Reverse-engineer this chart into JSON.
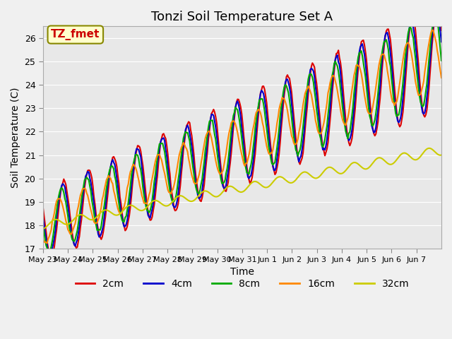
{
  "title": "Tonzi Soil Temperature Set A",
  "xlabel": "Time",
  "ylabel": "Soil Temperature (C)",
  "annotation": "TZ_fmet",
  "annotation_color": "#cc0000",
  "annotation_bg": "#ffffcc",
  "annotation_border": "#888800",
  "ylim": [
    17.0,
    26.5
  ],
  "yticks": [
    17.0,
    18.0,
    19.0,
    20.0,
    21.0,
    22.0,
    23.0,
    24.0,
    25.0,
    26.0
  ],
  "xtick_labels": [
    "May 23",
    "May 24",
    "May 25",
    "May 26",
    "May 27",
    "May 28",
    "May 29",
    "May 30",
    "May 31",
    "Jun 1",
    "Jun 2",
    "Jun 3",
    "Jun 4",
    "Jun 5",
    "Jun 6",
    "Jun 7"
  ],
  "series_colors": [
    "#dd0000",
    "#0000cc",
    "#00aa00",
    "#ff8800",
    "#cccc00"
  ],
  "series_labels": [
    "2cm",
    "4cm",
    "8cm",
    "16cm",
    "32cm"
  ],
  "line_width": 1.5,
  "background_color": "#e8e8e8",
  "plot_bg_color": "#e8e8e8",
  "grid_color": "#ffffff",
  "title_fontsize": 13,
  "axis_fontsize": 10,
  "legend_fontsize": 10
}
